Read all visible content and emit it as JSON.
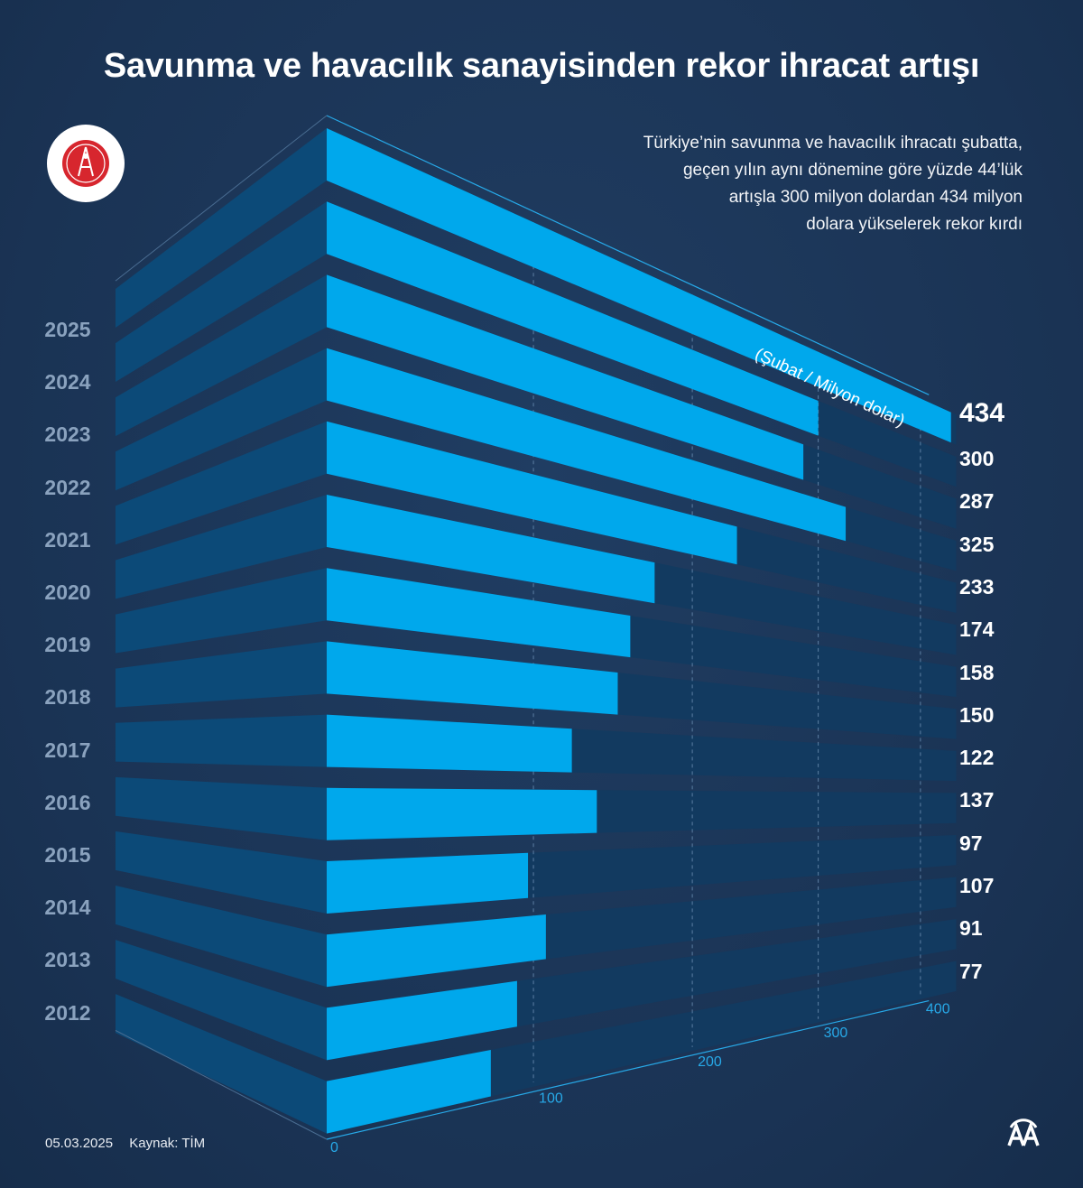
{
  "header": {
    "title": "Savunma ve havacılık sanayisinden rekor ihracat artışı",
    "subtitle_lines": [
      "Türkiye’nin savunma ve havacılık ihracatı şubatta,",
      "geçen yılın aynı dönemine göre yüzde 44’lük",
      "artışla 300 milyon dolardan 434 milyon",
      "dolara yükselerek rekor kırdı"
    ]
  },
  "footer": {
    "date": "05.03.2025",
    "source": "Kaynak: TİM"
  },
  "logo_text": "SAVUNMA SANAYİİ BAŞKANLIĞI",
  "agency_logo": "AA",
  "colors": {
    "bar": "#00a8ec",
    "track": "#123a60",
    "side": "#0c4a78",
    "background": "#1b3556",
    "axis": "#27a9e8"
  },
  "chart_data": {
    "type": "bar",
    "orientation": "horizontal-3d",
    "title": "Savunma ve havacılık sanayisinden rekor ihracat artışı",
    "unit_label": "(Şubat / Milyon dolar)",
    "categories": [
      "2025",
      "2024",
      "2023",
      "2022",
      "2021",
      "2020",
      "2019",
      "2018",
      "2017",
      "2016",
      "2015",
      "2014",
      "2013",
      "2012"
    ],
    "values": [
      434,
      300,
      287,
      325,
      233,
      174,
      158,
      150,
      122,
      137,
      97,
      107,
      91,
      77
    ],
    "xlim": [
      0,
      440
    ],
    "xticks": [
      0,
      100,
      200,
      300,
      400
    ],
    "grid": true
  }
}
